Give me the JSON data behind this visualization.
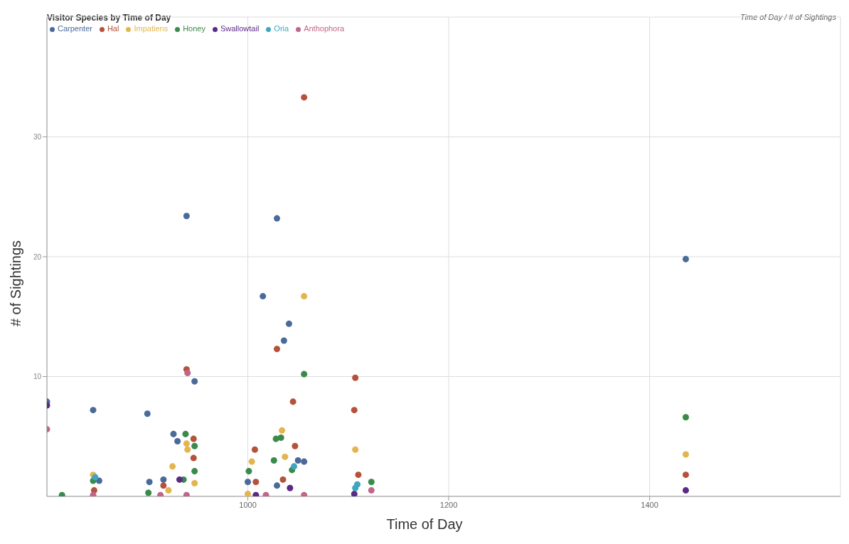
{
  "chart_data": {
    "type": "scatter",
    "title": "Visitor Species by Time of Day",
    "subtitle": "Time of Day / # of Sightings",
    "xlabel": "Time of Day",
    "ylabel": "# of Sightings",
    "xlim": [
      800,
      1590
    ],
    "xticks": [
      1000,
      1200,
      1400
    ],
    "ylim": [
      0,
      40
    ],
    "yticks": [
      10,
      20,
      30
    ],
    "grid": true,
    "legend": "top left",
    "marker": "circle",
    "series": [
      {
        "name": "Carpenter",
        "color": "#4a6a9a",
        "x": [
          800,
          846,
          852,
          900,
          902,
          916,
          926,
          930,
          939,
          947,
          1000,
          1015,
          1029,
          1029,
          1036,
          1041,
          1050,
          1056,
          1436
        ],
        "values": [
          7.9,
          7.2,
          1.3,
          6.9,
          1.2,
          1.4,
          5.2,
          4.6,
          23.4,
          9.6,
          1.2,
          16.7,
          23.2,
          0.9,
          13.0,
          14.4,
          3.0,
          2.9,
          19.8
        ]
      },
      {
        "name": "Hal",
        "color": "#b5523b",
        "x": [
          847,
          916,
          939,
          946,
          946,
          1007,
          1008,
          1029,
          1035,
          1045,
          1047,
          1056,
          1106,
          1107,
          1110,
          1436
        ],
        "values": [
          0.5,
          0.9,
          10.6,
          4.8,
          3.2,
          3.9,
          1.2,
          12.3,
          1.4,
          7.9,
          4.2,
          33.3,
          7.2,
          9.9,
          1.8,
          1.8
        ]
      },
      {
        "name": "Impatiens",
        "color": "#e3b54e",
        "x": [
          846,
          921,
          925,
          939,
          940,
          947,
          1000,
          1004,
          1034,
          1037,
          1056,
          1107,
          1436
        ],
        "values": [
          1.8,
          0.5,
          2.5,
          4.4,
          3.9,
          1.1,
          0.2,
          2.9,
          5.5,
          3.3,
          16.7,
          3.9,
          3.5
        ]
      },
      {
        "name": "Honey",
        "color": "#3a8a4a",
        "x": [
          815,
          846,
          901,
          936,
          938,
          947,
          947,
          1001,
          1026,
          1028,
          1033,
          1044,
          1056,
          1123,
          1436
        ],
        "values": [
          0.1,
          1.3,
          0.3,
          1.4,
          5.2,
          4.2,
          2.1,
          2.1,
          3.0,
          4.8,
          4.9,
          2.2,
          10.2,
          1.2,
          6.6
        ]
      },
      {
        "name": "Swallowtail",
        "color": "#5b2a86",
        "x": [
          800,
          932,
          1008,
          1042,
          1106,
          1436
        ],
        "values": [
          7.6,
          1.4,
          0.1,
          0.7,
          0.2,
          0.5
        ]
      },
      {
        "name": "Oria",
        "color": "#3fa6c0",
        "x": [
          848,
          1046,
          1107,
          1109
        ],
        "values": [
          1.6,
          2.5,
          0.7,
          1.0
        ]
      },
      {
        "name": "Anthophora",
        "color": "#c0668a",
        "x": [
          800,
          846,
          913,
          939,
          940,
          1018,
          1056,
          1123
        ],
        "values": [
          5.6,
          0.1,
          0.1,
          0.1,
          10.3,
          0.1,
          0.1,
          0.5
        ]
      }
    ]
  }
}
